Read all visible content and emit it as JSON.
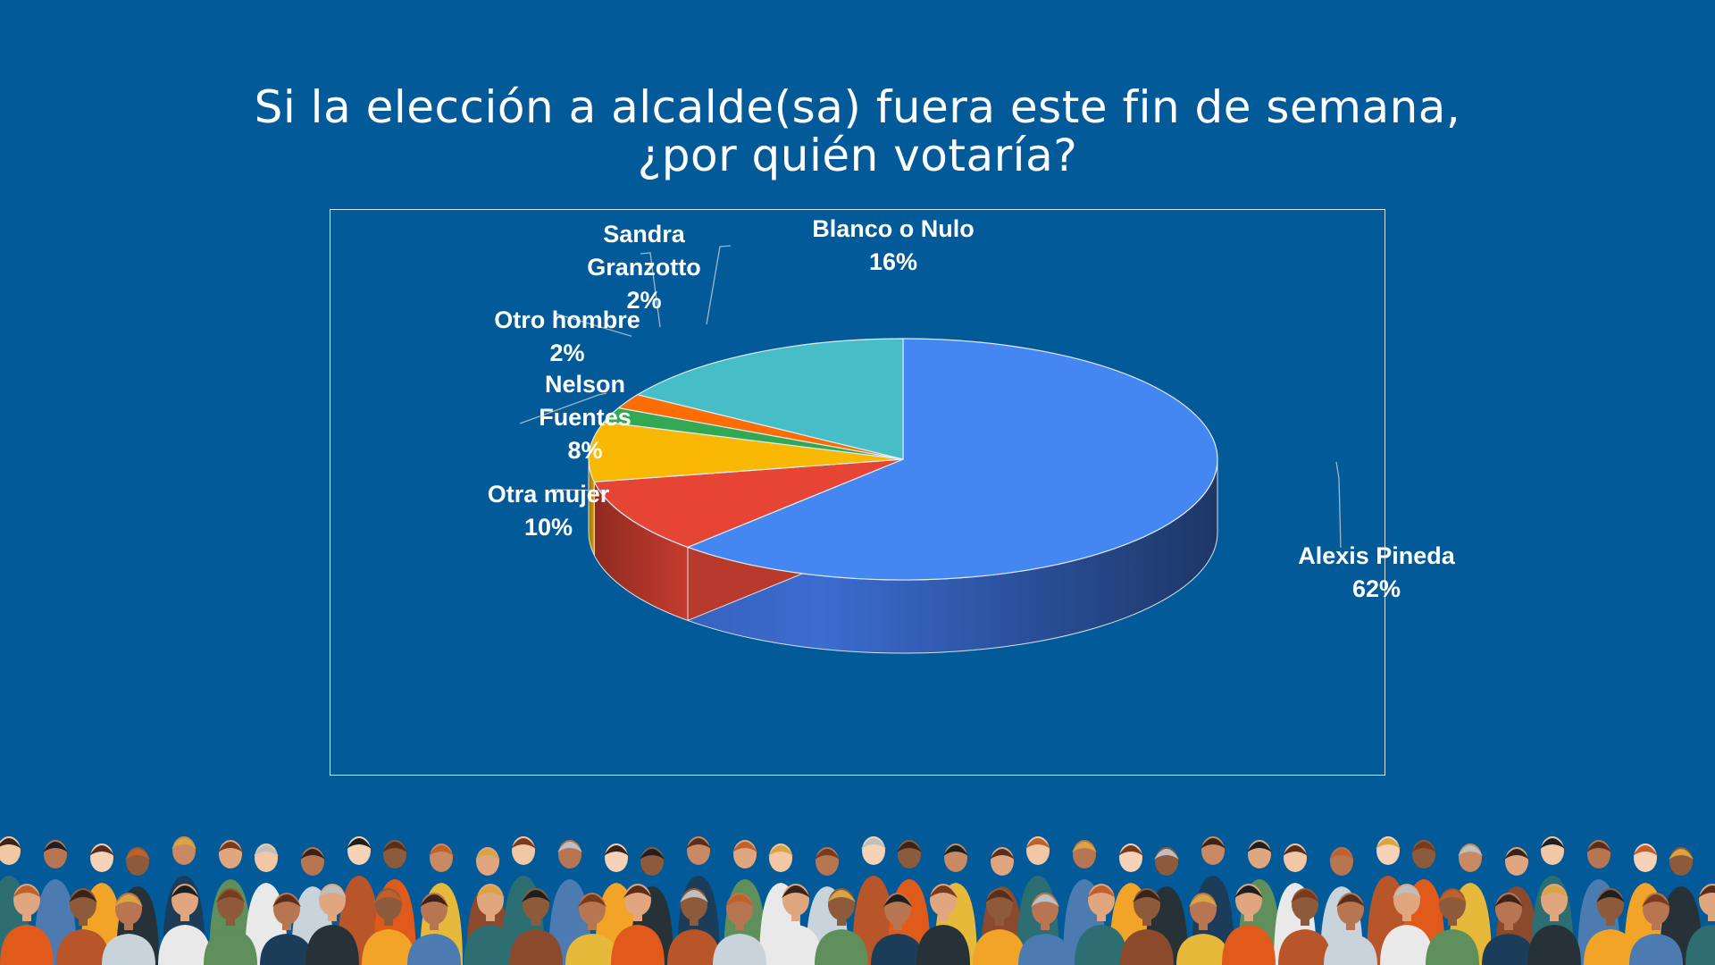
{
  "title": {
    "line1": "Si la elección a alcalde(sa) fuera este fin de semana,",
    "line2": "¿por quién votaría?"
  },
  "colors": {
    "background": "#035a99",
    "frame_border": "#d7e3ee",
    "label_text": "#ffffff",
    "leader_line": "#9fb6c9"
  },
  "chart_data": {
    "type": "pie",
    "style": "3d-exploded-perspective",
    "title": "",
    "start_angle_note": "first slice starts at 12 o'clock, proceeds clockwise",
    "slices": [
      {
        "label_lines": [
          "Alexis Pineda"
        ],
        "percent_text": "62%",
        "value": 62,
        "color": "#4486f2"
      },
      {
        "label_lines": [
          "Otra mujer"
        ],
        "percent_text": "10%",
        "value": 10,
        "color": "#e64535"
      },
      {
        "label_lines": [
          "Nelson",
          "Fuentes"
        ],
        "percent_text": "8%",
        "value": 8,
        "color": "#f8b804"
      },
      {
        "label_lines": [
          "Otro hombre"
        ],
        "percent_text": "2%",
        "value": 2,
        "color": "#33a852"
      },
      {
        "label_lines": [
          "Sandra",
          "Granzotto"
        ],
        "percent_text": "2%",
        "value": 2,
        "color": "#fd6d01"
      },
      {
        "label_lines": [
          "Blanco o Nulo"
        ],
        "percent_text": "16%",
        "value": 16,
        "color": "#46bdc7"
      }
    ]
  },
  "crowd": {
    "description_icon": "crowd-of-people-illustration"
  }
}
